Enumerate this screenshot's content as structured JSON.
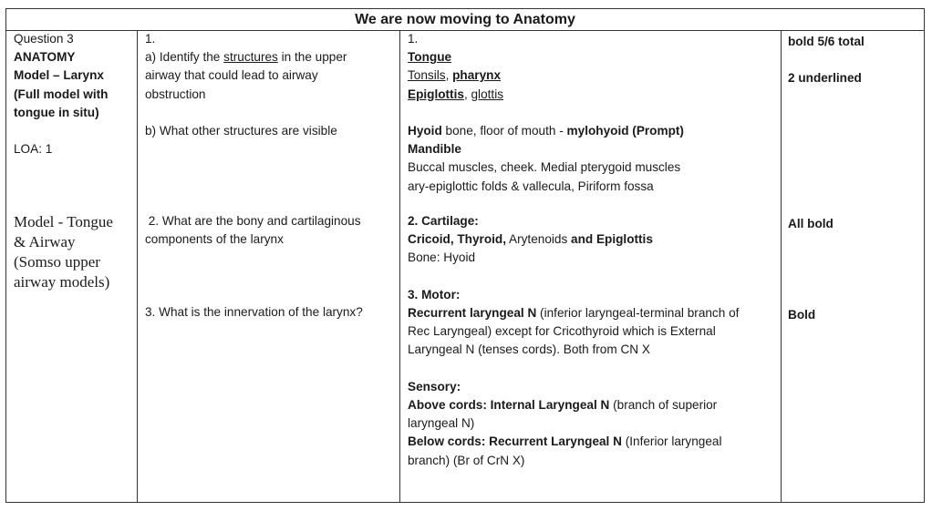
{
  "title": "We are now moving to Anatomy",
  "col1": {
    "question": "Question 3",
    "section": "ANATOMY",
    "model": "Model – Larynx",
    "model_note_1": "(Full model with",
    "model_note_2": "tongue in situ)",
    "loa": "LOA: 1",
    "model2": [
      "Model - Tongue",
      "& Airway",
      "(Somso upper",
      "airway models)"
    ]
  },
  "col2": {
    "q1_num": "1.",
    "q1a_pre": "a) Identify the ",
    "q1a_u": "structures",
    "q1a_post": " in the upper",
    "q1a_line2": "airway that could lead to airway",
    "q1a_line3": "obstruction",
    "q1b": "b) What other structures are visible",
    "q2_line1": " 2. What are the bony and cartilaginous",
    "q2_line2": "components of the larynx",
    "q3": "3. What is the innervation of the larynx?"
  },
  "col3": {
    "a1_num": "1.",
    "tongue": "Tongue",
    "tonsils": "Tonsils",
    "comma1": ", ",
    "pharynx": "pharynx",
    "epiglottis": "Epiglottis",
    "comma2": ", ",
    "glottis": "glottis",
    "hyoid_b": "Hyoid",
    "hyoid_rest": " bone, floor of mouth - ",
    "mylohyoid": "mylohyoid (Prompt)",
    "mandible": "Mandible",
    "buccal": "Buccal muscles, cheek. Medial pterygoid muscles",
    "ary": "ary-epiglottic folds & vallecula, Piriform fossa",
    "a2_head": "2. Cartilage:",
    "cricoid": "Cricoid, Thyroid,",
    "arytenoids": " Arytenoids ",
    "and_epi": "and Epiglottis",
    "bone": "Bone: Hyoid",
    "a3_head": "3. Motor:",
    "rln": "Recurrent laryngeal N",
    "rln_rest": " (inferior laryngeal-terminal branch of",
    "rln_line2": "Rec Laryngeal) except for Cricothyroid which is External",
    "rln_line3": "Laryngeal N (tenses cords). Both from CN X",
    "sensory": "Sensory:",
    "above": "Above cords: Internal Laryngeal N",
    "above_rest": " (branch of superior",
    "above_line2": "laryngeal N)",
    "below": "Below cords: Recurrent Laryngeal N",
    "below_rest": " (Inferior laryngeal",
    "below_line2": "branch) (Br of CrN X)"
  },
  "col4": {
    "m1": "bold 5/6 total",
    "m1b": "2 underlined",
    "m2": "All bold",
    "m3": "Bold"
  }
}
